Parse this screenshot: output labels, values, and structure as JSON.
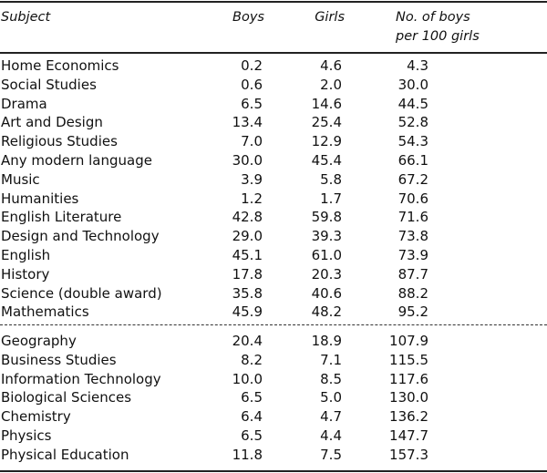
{
  "headers": {
    "subject": "Subject",
    "boys": "Boys",
    "girls": "Girls",
    "ratio_line1": "No. of boys",
    "ratio_line2": "per 100 girls"
  },
  "rows_above": [
    {
      "subject": "Home Economics",
      "boys": "0.2",
      "girls": "4.6",
      "ratio": "4.3"
    },
    {
      "subject": "Social Studies",
      "boys": "0.6",
      "girls": "2.0",
      "ratio": "30.0"
    },
    {
      "subject": "Drama",
      "boys": "6.5",
      "girls": "14.6",
      "ratio": "44.5"
    },
    {
      "subject": "Art and Design",
      "boys": "13.4",
      "girls": "25.4",
      "ratio": "52.8"
    },
    {
      "subject": "Religious Studies",
      "boys": "7.0",
      "girls": "12.9",
      "ratio": "54.3"
    },
    {
      "subject": "Any modern language",
      "boys": "30.0",
      "girls": "45.4",
      "ratio": "66.1"
    },
    {
      "subject": "Music",
      "boys": "3.9",
      "girls": "5.8",
      "ratio": "67.2"
    },
    {
      "subject": "Humanities",
      "boys": "1.2",
      "girls": "1.7",
      "ratio": "70.6"
    },
    {
      "subject": "English Literature",
      "boys": "42.8",
      "girls": "59.8",
      "ratio": "71.6"
    },
    {
      "subject": "Design and Technology",
      "boys": "29.0",
      "girls": "39.3",
      "ratio": "73.8"
    },
    {
      "subject": "English",
      "boys": "45.1",
      "girls": "61.0",
      "ratio": "73.9"
    },
    {
      "subject": "History",
      "boys": "17.8",
      "girls": "20.3",
      "ratio": "87.7"
    },
    {
      "subject": "Science (double award)",
      "boys": "35.8",
      "girls": "40.6",
      "ratio": "88.2"
    },
    {
      "subject": "Mathematics",
      "boys": "45.9",
      "girls": "48.2",
      "ratio": "95.2"
    }
  ],
  "rows_below": [
    {
      "subject": "Geography",
      "boys": "20.4",
      "girls": "18.9",
      "ratio": "107.9"
    },
    {
      "subject": "Business Studies",
      "boys": "8.2",
      "girls": "7.1",
      "ratio": "115.5"
    },
    {
      "subject": "Information Technology",
      "boys": "10.0",
      "girls": "8.5",
      "ratio": "117.6"
    },
    {
      "subject": "Biological Sciences",
      "boys": "6.5",
      "girls": "5.0",
      "ratio": "130.0"
    },
    {
      "subject": "Chemistry",
      "boys": "6.4",
      "girls": "4.7",
      "ratio": "136.2"
    },
    {
      "subject": "Physics",
      "boys": "6.5",
      "girls": "4.4",
      "ratio": "147.7"
    },
    {
      "subject": "Physical Education",
      "boys": "11.8",
      "girls": "7.5",
      "ratio": "157.3"
    }
  ]
}
